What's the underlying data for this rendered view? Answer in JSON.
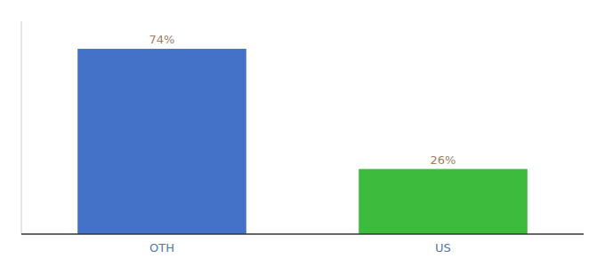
{
  "chart_data": {
    "type": "bar",
    "categories": [
      "OTH",
      "US"
    ],
    "values": [
      74,
      26
    ],
    "value_labels": [
      "74%",
      "26%"
    ],
    "colors": [
      "#4472c8",
      "#3dbb3d"
    ],
    "ylim": [
      0,
      85
    ],
    "data_labels": true,
    "tick_labels": "x",
    "grid": false
  }
}
